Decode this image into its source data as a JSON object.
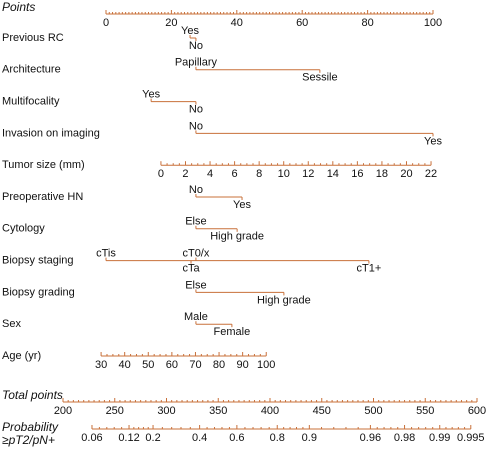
{
  "chart_data": {
    "type": "nomogram",
    "points_axis": {
      "title": "Points",
      "xlim": [
        0,
        100
      ],
      "xticks": [
        0,
        20,
        40,
        60,
        80,
        100
      ]
    },
    "rows": [
      {
        "label": "Previous RC",
        "levels": [
          {
            "name": "Yes",
            "points": 25.7
          },
          {
            "name": "No",
            "points": 27.5
          }
        ]
      },
      {
        "label": "Architecture",
        "levels": [
          {
            "name": "Papillary",
            "points": 27.5
          },
          {
            "name": "Sessile",
            "points": 65.4
          }
        ]
      },
      {
        "label": "Multifocality",
        "levels": [
          {
            "name": "Yes",
            "points": 13.8
          },
          {
            "name": "No",
            "points": 27.5
          }
        ]
      },
      {
        "label": "Invasion on imaging",
        "levels": [
          {
            "name": "No",
            "points": 27.5
          },
          {
            "name": "Yes",
            "points": 100
          }
        ]
      },
      {
        "label": "Tumor size (mm)",
        "ticks": [
          0,
          2,
          4,
          6,
          8,
          10,
          12,
          14,
          16,
          18,
          20,
          22
        ],
        "points": [
          16.8,
          99.4
        ]
      },
      {
        "label": "Preoperative HN",
        "levels": [
          {
            "name": "No",
            "points": 27.5
          },
          {
            "name": "Yes",
            "points": 41.6
          }
        ]
      },
      {
        "label": "Cytology",
        "levels": [
          {
            "name": "Else",
            "points": 27.5
          },
          {
            "name": "High grade",
            "points": 40.1
          }
        ]
      },
      {
        "label": "Biopsy staging",
        "levels": [
          {
            "name": "cTis",
            "points": 0
          },
          {
            "name": "cTa",
            "points": 26
          },
          {
            "name": "cT0/x",
            "points": 27.5
          },
          {
            "name": "cT1+",
            "points": 80.4
          }
        ]
      },
      {
        "label": "Biopsy grading",
        "levels": [
          {
            "name": "Else",
            "points": 27.5
          },
          {
            "name": "High grade",
            "points": 54.4
          }
        ]
      },
      {
        "label": "Sex",
        "levels": [
          {
            "name": "Male",
            "points": 27.5
          },
          {
            "name": "Female",
            "points": 38.5
          }
        ]
      },
      {
        "label": "Age (yr)",
        "ticks": [
          30,
          40,
          50,
          60,
          70,
          80,
          90,
          100
        ],
        "points": [
          -1.5,
          49
        ]
      }
    ],
    "total_axis": {
      "title": "Total points",
      "xlim": [
        200,
        600
      ],
      "xticks": [
        200,
        250,
        300,
        350,
        400,
        450,
        500,
        550,
        600
      ]
    },
    "probability_axis": {
      "title": [
        "Probability",
        "≥pT2/pN+"
      ],
      "ticks": [
        0.06,
        0.12,
        0.2,
        0.4,
        0.6,
        0.8,
        0.9,
        0.96,
        0.98,
        0.99,
        0.995
      ],
      "total_points": [
        228,
        263.8,
        287,
        332,
        368,
        407,
        438,
        497,
        530,
        564,
        594
      ]
    },
    "color": "#c8703a"
  }
}
